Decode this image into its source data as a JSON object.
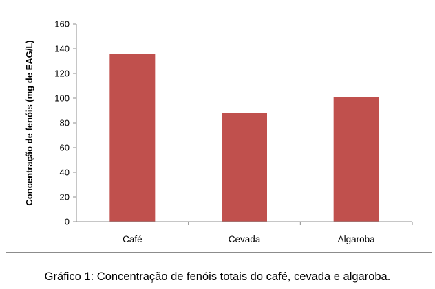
{
  "chart_data": {
    "type": "bar",
    "categories": [
      "Café",
      "Cevada",
      "Algaroba"
    ],
    "values": [
      136,
      88,
      101
    ],
    "title": "",
    "xlabel": "",
    "ylabel": "Concentração de fenóis (mg de EAG/L)",
    "ylim": [
      0,
      160
    ],
    "yticks": [
      "0",
      "20",
      "40",
      "60",
      "80",
      "100",
      "120",
      "140",
      "160"
    ],
    "grid": false,
    "legend": "none",
    "bar_color": "#c0504d"
  },
  "caption": "Gráfico 1: Concentração de fenóis totais do café, cevada e algaroba."
}
